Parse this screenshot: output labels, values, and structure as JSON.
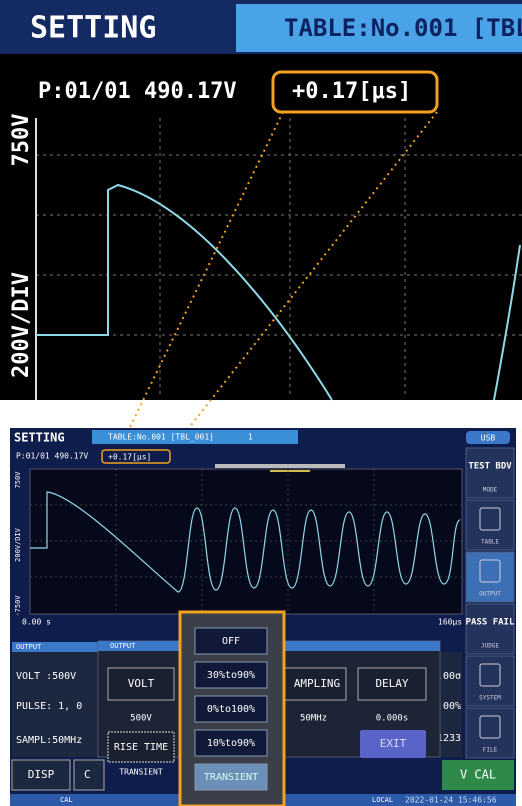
{
  "zoom": {
    "header": {
      "title": "SETTING",
      "table_tab": "TABLE:No.001 [TBL"
    },
    "readout": {
      "position_voltage": "P:01/01 490.17V",
      "time": "+0.17[μs]"
    },
    "axis_labels": {
      "top": "750V",
      "scale": "200V/DIV"
    }
  },
  "screen": {
    "header": {
      "title": "SETTING",
      "table_tab": "TABLE:No.001 [TBL_001]",
      "table_index": "1",
      "usb": "USB"
    },
    "readout": {
      "position_voltage": "P:01/01 490.17V",
      "time": "+0.17[μs]"
    },
    "axis_labels": {
      "top": "750V",
      "scale": "200V/DIV",
      "bottom": "-750V",
      "time_start": "0.00 s",
      "time_end": "160μs"
    },
    "sidebar": [
      {
        "label": "TEST BDV",
        "caption": "MODE"
      },
      {
        "label": "",
        "caption": "TABLE"
      },
      {
        "label": "",
        "caption": "OUTPUT"
      },
      {
        "label": "PASS FAIL",
        "caption": "JUDGE"
      },
      {
        "label": "",
        "caption": "SYSTEM"
      },
      {
        "label": "",
        "caption": "FILE"
      }
    ],
    "output_panel": {
      "tab": "OUTPUT",
      "lines": [
        "VOLT :500V",
        "PULSE: 1, 0",
        "SAMPL:50MHz"
      ]
    },
    "background_values": [
      ".00σ",
      ".00%",
      "1233"
    ],
    "dialog": {
      "title": "OUTPUT",
      "volt": {
        "button": "VOLT",
        "value": "500V"
      },
      "rise_time": {
        "button": "RISE TIME",
        "value": "TRANSIENT"
      },
      "sampling": {
        "button": "AMPLING",
        "value": "50MHz"
      },
      "delay": {
        "button": "DELAY",
        "value": "0.000s"
      },
      "exit": "EXIT"
    },
    "dropdown": [
      "OFF",
      "30%to90%",
      "0%to100%",
      "10%to90%",
      "TRANSIENT"
    ],
    "bottom_buttons": {
      "disp": "DISP",
      "c": "C",
      "vcal": "V CAL"
    },
    "status": {
      "mode": "CAL",
      "remote": "LOCAL",
      "datetime": "2022-01-24 15:46:56"
    }
  }
}
